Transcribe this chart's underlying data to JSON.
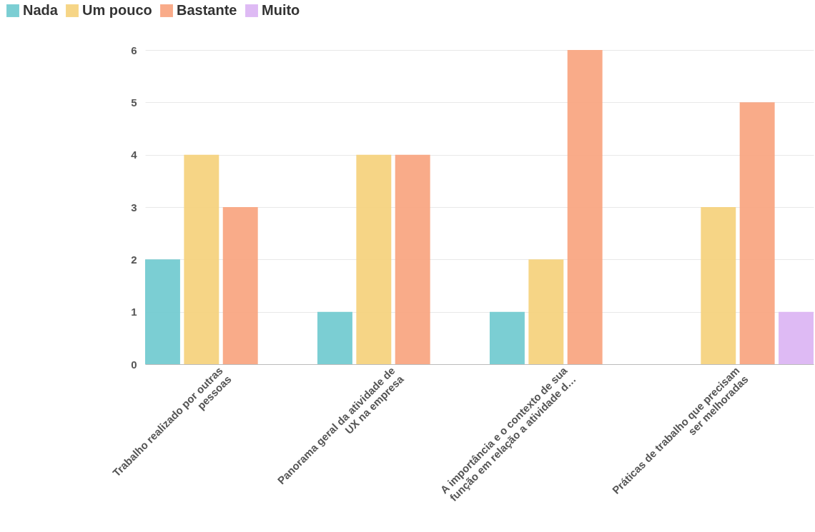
{
  "chart_data": {
    "type": "bar",
    "categories": [
      "Trabalho realizado por outras\npessoas",
      "Panorama geral da atividade de\nUX na empresa",
      "A importância e o contexto de sua\nfunção em relação a atividade d…",
      "Práticas de trabalho que precisam\nser melhoradas"
    ],
    "series": [
      {
        "name": "Nada",
        "color": "#74cbd1",
        "values": [
          2,
          1,
          1,
          null
        ]
      },
      {
        "name": "Um pouco",
        "color": "#f6d37f",
        "values": [
          4,
          4,
          2,
          3
        ]
      },
      {
        "name": "Bastante",
        "color": "#f9a683",
        "values": [
          3,
          4,
          6,
          5
        ]
      },
      {
        "name": "Muito",
        "color": "#dcb6f3",
        "values": [
          null,
          null,
          null,
          1
        ]
      }
    ],
    "ylim": [
      0,
      6
    ],
    "yticks": [
      0,
      1,
      2,
      3,
      4,
      5,
      6
    ],
    "grid": "y",
    "legend": "top left"
  }
}
